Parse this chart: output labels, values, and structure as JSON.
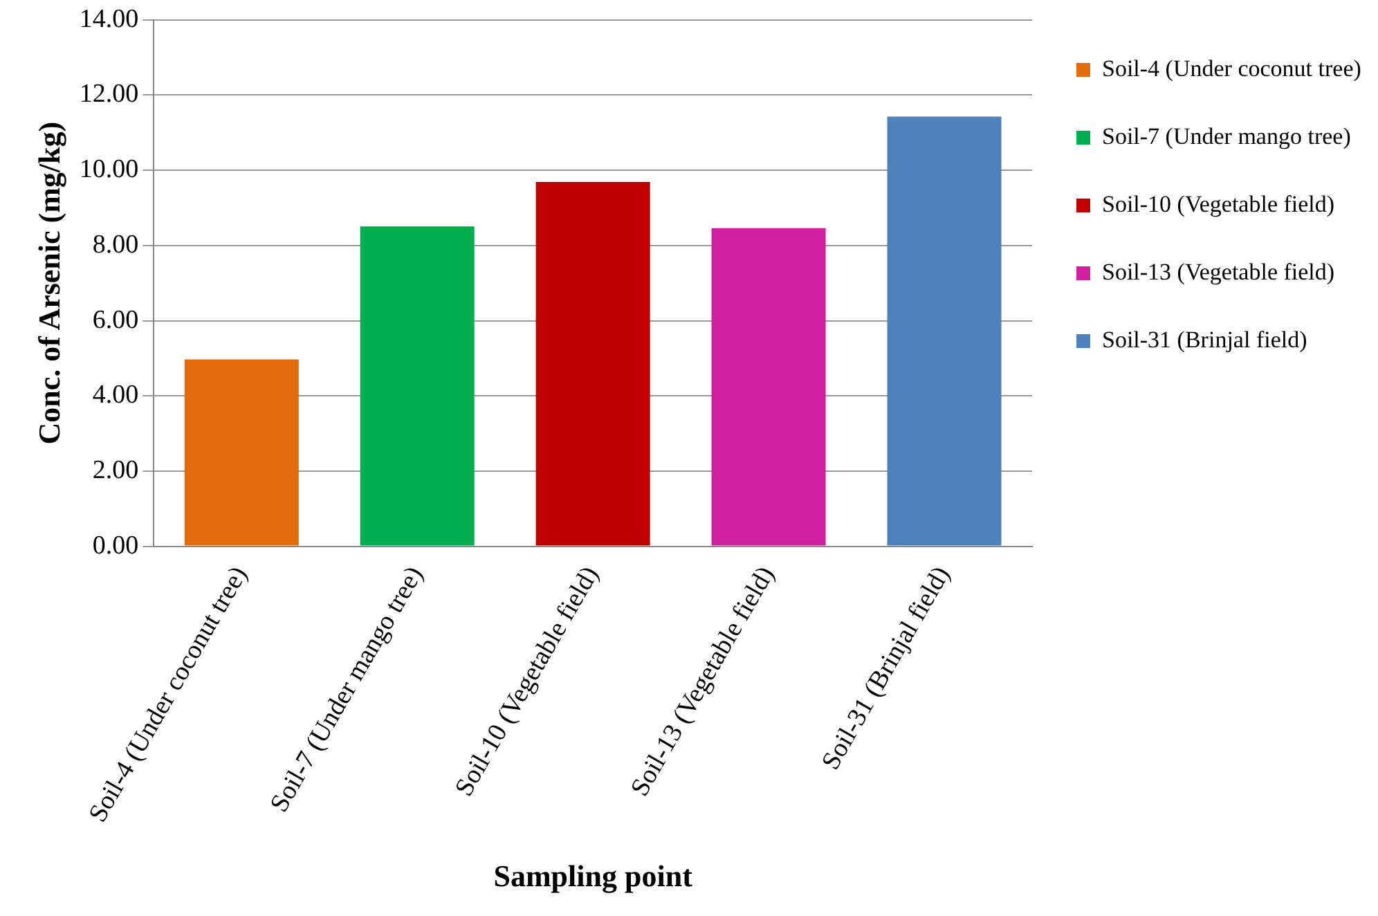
{
  "chart_data": {
    "type": "bar",
    "xlabel": "Sampling point",
    "ylabel": "Conc. of Arsenic (mg/kg)",
    "categories": [
      "Soil-4 (Under coconut tree)",
      "Soil-7 (Under mango tree)",
      "Soil-10 (Vegetable field)",
      "Soil-13 (Vegetable field)",
      "Soil-31 (Brinjal field)"
    ],
    "series": [
      {
        "name": "Soil-4 (Under coconut tree)",
        "color": "#e46c0a",
        "values": [
          4.97,
          null,
          null,
          null,
          null
        ]
      },
      {
        "name": "Soil-7 (Under mango tree)",
        "color": "#00b050",
        "values": [
          null,
          8.51,
          null,
          null,
          null
        ]
      },
      {
        "name": "Soil-10 (Vegetable field)",
        "color": "#c00000",
        "values": [
          null,
          null,
          9.69,
          null,
          null
        ]
      },
      {
        "name": "Soil-13 (Vegetable field)",
        "color": "#d020a0",
        "values": [
          null,
          null,
          null,
          8.46,
          null
        ]
      },
      {
        "name": "Soil-31 (Brinjal field)",
        "color": "#4f81bd",
        "values": [
          null,
          null,
          null,
          null,
          11.43
        ]
      }
    ],
    "ylim": [
      0,
      14
    ],
    "yticks": [
      {
        "value": 0,
        "label": "0.00"
      },
      {
        "value": 2,
        "label": "2.00"
      },
      {
        "value": 4,
        "label": "4.00"
      },
      {
        "value": 6,
        "label": "6.00"
      },
      {
        "value": 8,
        "label": "8.00"
      },
      {
        "value": 10,
        "label": "10.00"
      },
      {
        "value": 12,
        "label": "12.00"
      },
      {
        "value": 14,
        "label": "14.00"
      }
    ],
    "grid": "y",
    "legend": "right"
  }
}
